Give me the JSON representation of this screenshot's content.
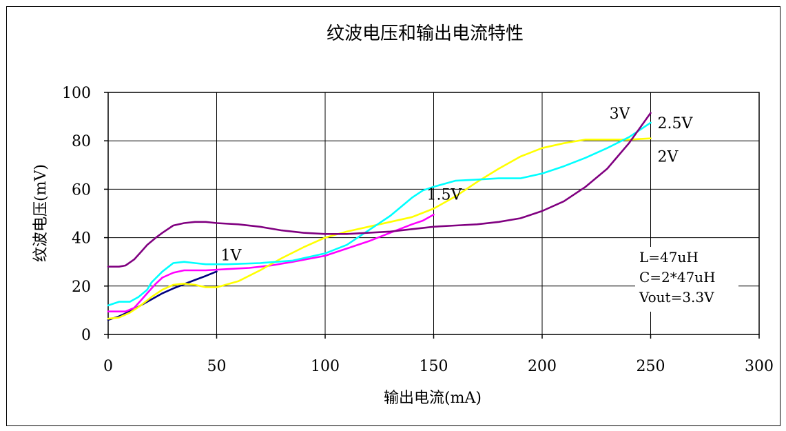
{
  "chart_data": {
    "type": "line",
    "title": "纹波电压和输出电流特性",
    "xlabel": "输出电流(mA)",
    "ylabel": "纹波电压(mV)",
    "xlim": [
      0,
      300
    ],
    "ylim": [
      0,
      100
    ],
    "x_ticks": [
      "0",
      "50",
      "100",
      "150",
      "200",
      "250",
      "300"
    ],
    "y_ticks": [
      "0",
      "20",
      "40",
      "60",
      "80",
      "100"
    ],
    "grid": true,
    "note": [
      "L=47uH",
      "C=2*47uH",
      "Vout=3.3V"
    ],
    "series": [
      {
        "name": "1V",
        "color": "#000080",
        "points": [
          [
            0,
            6
          ],
          [
            5,
            7.5
          ],
          [
            10,
            9.5
          ],
          [
            15,
            12
          ],
          [
            20,
            14.5
          ],
          [
            25,
            17
          ],
          [
            30,
            19
          ],
          [
            35,
            20.8
          ],
          [
            40,
            22.5
          ],
          [
            45,
            24.2
          ],
          [
            50,
            26
          ]
        ]
      },
      {
        "name": "1.5V",
        "color": "#ff00ff",
        "points": [
          [
            0,
            9.5
          ],
          [
            5,
            9.5
          ],
          [
            8,
            9.5
          ],
          [
            12,
            11
          ],
          [
            15,
            14
          ],
          [
            18,
            17
          ],
          [
            22,
            21
          ],
          [
            25,
            23.5
          ],
          [
            30,
            25.5
          ],
          [
            35,
            26.5
          ],
          [
            45,
            26.5
          ],
          [
            55,
            27
          ],
          [
            65,
            27.5
          ],
          [
            75,
            28.5
          ],
          [
            85,
            30
          ],
          [
            100,
            32.5
          ],
          [
            110,
            35.5
          ],
          [
            120,
            38.5
          ],
          [
            130,
            42
          ],
          [
            140,
            45.5
          ],
          [
            145,
            47
          ],
          [
            150,
            49.5
          ]
        ]
      },
      {
        "name": "2V",
        "color": "#ffff00",
        "points": [
          [
            0,
            6.5
          ],
          [
            5,
            7
          ],
          [
            10,
            9
          ],
          [
            15,
            12
          ],
          [
            20,
            15.5
          ],
          [
            25,
            18.5
          ],
          [
            30,
            20.5
          ],
          [
            35,
            21
          ],
          [
            40,
            20.5
          ],
          [
            45,
            19.5
          ],
          [
            50,
            19.5
          ],
          [
            60,
            22
          ],
          [
            70,
            26.5
          ],
          [
            80,
            31.5
          ],
          [
            90,
            36
          ],
          [
            100,
            40
          ],
          [
            110,
            42.5
          ],
          [
            120,
            44.5
          ],
          [
            130,
            46.5
          ],
          [
            140,
            48.5
          ],
          [
            150,
            52
          ],
          [
            160,
            57
          ],
          [
            170,
            63
          ],
          [
            180,
            68.5
          ],
          [
            190,
            73.5
          ],
          [
            200,
            77
          ],
          [
            210,
            79
          ],
          [
            220,
            80.5
          ],
          [
            230,
            80.5
          ],
          [
            240,
            80.5
          ],
          [
            250,
            81
          ]
        ]
      },
      {
        "name": "2.5V",
        "color": "#00ffff",
        "points": [
          [
            0,
            12
          ],
          [
            5,
            13.5
          ],
          [
            10,
            13.5
          ],
          [
            14,
            15.5
          ],
          [
            18,
            18.5
          ],
          [
            20,
            21.5
          ],
          [
            25,
            26
          ],
          [
            30,
            29.5
          ],
          [
            35,
            30
          ],
          [
            40,
            29.5
          ],
          [
            45,
            29
          ],
          [
            55,
            29
          ],
          [
            70,
            29.5
          ],
          [
            85,
            30.5
          ],
          [
            100,
            33.5
          ],
          [
            110,
            37
          ],
          [
            120,
            43
          ],
          [
            130,
            49
          ],
          [
            140,
            56.5
          ],
          [
            145,
            59.5
          ],
          [
            150,
            61
          ],
          [
            160,
            63.5
          ],
          [
            170,
            64
          ],
          [
            180,
            64.5
          ],
          [
            190,
            64.5
          ],
          [
            200,
            66.5
          ],
          [
            210,
            69.5
          ],
          [
            220,
            73
          ],
          [
            230,
            77
          ],
          [
            240,
            81.5
          ],
          [
            250,
            87.5
          ]
        ]
      },
      {
        "name": "3V",
        "color": "#800080",
        "points": [
          [
            0,
            28
          ],
          [
            5,
            28
          ],
          [
            8,
            28.5
          ],
          [
            12,
            31
          ],
          [
            15,
            34
          ],
          [
            18,
            37
          ],
          [
            22,
            40
          ],
          [
            25,
            42
          ],
          [
            30,
            45
          ],
          [
            35,
            46
          ],
          [
            40,
            46.5
          ],
          [
            45,
            46.5
          ],
          [
            50,
            46
          ],
          [
            60,
            45.5
          ],
          [
            70,
            44.5
          ],
          [
            80,
            43
          ],
          [
            90,
            42
          ],
          [
            100,
            41.5
          ],
          [
            110,
            41.5
          ],
          [
            120,
            42
          ],
          [
            130,
            42.5
          ],
          [
            140,
            43.5
          ],
          [
            150,
            44.5
          ],
          [
            160,
            45
          ],
          [
            170,
            45.5
          ],
          [
            180,
            46.5
          ],
          [
            190,
            48
          ],
          [
            200,
            51
          ],
          [
            210,
            55
          ],
          [
            220,
            61
          ],
          [
            230,
            68.5
          ],
          [
            240,
            79
          ],
          [
            250,
            91.5
          ]
        ]
      }
    ]
  }
}
